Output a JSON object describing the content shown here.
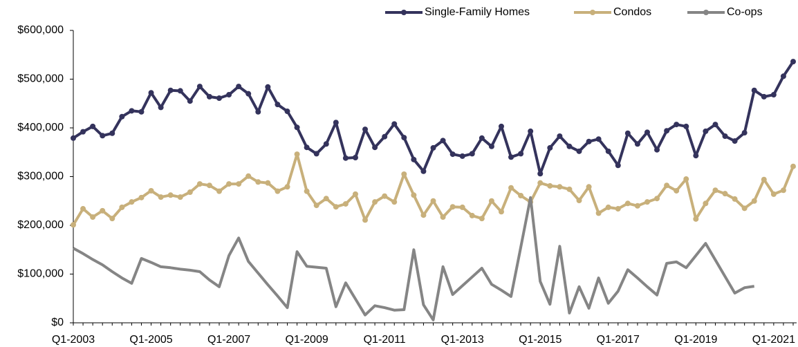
{
  "chart_data": {
    "type": "line",
    "categories": [
      "Q1-2003",
      null,
      null,
      null,
      null,
      null,
      null,
      null,
      "Q1-2005",
      null,
      null,
      null,
      null,
      null,
      null,
      null,
      "Q1-2007",
      null,
      null,
      null,
      null,
      null,
      null,
      null,
      "Q1-2009",
      null,
      null,
      null,
      null,
      null,
      null,
      null,
      "Q1-2011",
      null,
      null,
      null,
      null,
      null,
      null,
      null,
      "Q1-2013",
      null,
      null,
      null,
      null,
      null,
      null,
      null,
      "Q1-2015",
      null,
      null,
      null,
      null,
      null,
      null,
      null,
      "Q1-2017",
      null,
      null,
      null,
      null,
      null,
      null,
      null,
      "Q1-2019",
      null,
      null,
      null,
      null,
      null,
      null,
      null,
      "Q1-2021",
      null,
      null
    ],
    "series": [
      {
        "name": "Single-Family Homes",
        "color": "#34335c",
        "markers": true,
        "values": [
          379000,
          392000,
          403000,
          384000,
          389000,
          423000,
          435000,
          433000,
          472000,
          442000,
          477000,
          476000,
          455000,
          485000,
          464000,
          461000,
          468000,
          485000,
          470000,
          433000,
          484000,
          448000,
          434000,
          401000,
          360000,
          347000,
          367000,
          411000,
          338000,
          339000,
          397000,
          360000,
          382000,
          408000,
          380000,
          335000,
          311000,
          359000,
          374000,
          346000,
          342000,
          347000,
          379000,
          362000,
          403000,
          340000,
          347000,
          393000,
          306000,
          359000,
          383000,
          362000,
          352000,
          372000,
          377000,
          352000,
          323000,
          389000,
          367000,
          391000,
          355000,
          394000,
          407000,
          403000,
          343000,
          393000,
          407000,
          383000,
          373000,
          390000,
          477000,
          464000,
          468000,
          506000,
          536000
        ]
      },
      {
        "name": "Condos",
        "color": "#c8b07b",
        "markers": true,
        "values": [
          201000,
          234000,
          217000,
          230000,
          214000,
          237000,
          248000,
          257000,
          271000,
          258000,
          262000,
          258000,
          268000,
          285000,
          282000,
          270000,
          285000,
          285000,
          301000,
          289000,
          287000,
          270000,
          279000,
          346000,
          270000,
          241000,
          255000,
          238000,
          244000,
          264000,
          211000,
          248000,
          260000,
          248000,
          305000,
          262000,
          221000,
          250000,
          217000,
          238000,
          237000,
          220000,
          214000,
          250000,
          228000,
          277000,
          261000,
          248000,
          287000,
          281000,
          279000,
          274000,
          251000,
          279000,
          225000,
          237000,
          234000,
          245000,
          240000,
          248000,
          255000,
          282000,
          271000,
          295000,
          213000,
          245000,
          272000,
          265000,
          254000,
          235000,
          250000,
          294000,
          264000,
          272000,
          321000
        ]
      },
      {
        "name": "Co-ops",
        "color": "#858585",
        "markers": false,
        "values": [
          153000,
          142000,
          130000,
          119000,
          105000,
          92000,
          81000,
          132000,
          124000,
          115000,
          113000,
          110000,
          108000,
          105000,
          88000,
          74000,
          138000,
          174000,
          126000,
          102000,
          78000,
          55000,
          31000,
          146000,
          116000,
          114000,
          112000,
          33000,
          82000,
          49000,
          16000,
          35000,
          31000,
          26000,
          27000,
          150000,
          37000,
          6000,
          115000,
          58000,
          76000,
          94000,
          112000,
          79000,
          67000,
          54000,
          155000,
          257000,
          85000,
          38000,
          157000,
          20000,
          74000,
          30000,
          92000,
          40000,
          65000,
          109000,
          92000,
          74000,
          57000,
          122000,
          125000,
          113000,
          138000,
          163000,
          129000,
          95000,
          61000,
          72000,
          75000,
          null,
          null,
          null,
          null
        ]
      }
    ],
    "ylim": [
      0,
      600000
    ],
    "yticks": [
      {
        "value": 0,
        "label": "$0"
      },
      {
        "value": 100000,
        "label": "$100,000"
      },
      {
        "value": 200000,
        "label": "$200,000"
      },
      {
        "value": 300000,
        "label": "$300,000"
      },
      {
        "value": 400000,
        "label": "$400,000"
      },
      {
        "value": 500000,
        "label": "$500,000"
      },
      {
        "value": 600000,
        "label": "$600,000"
      }
    ],
    "grid": false,
    "legend": "top"
  }
}
